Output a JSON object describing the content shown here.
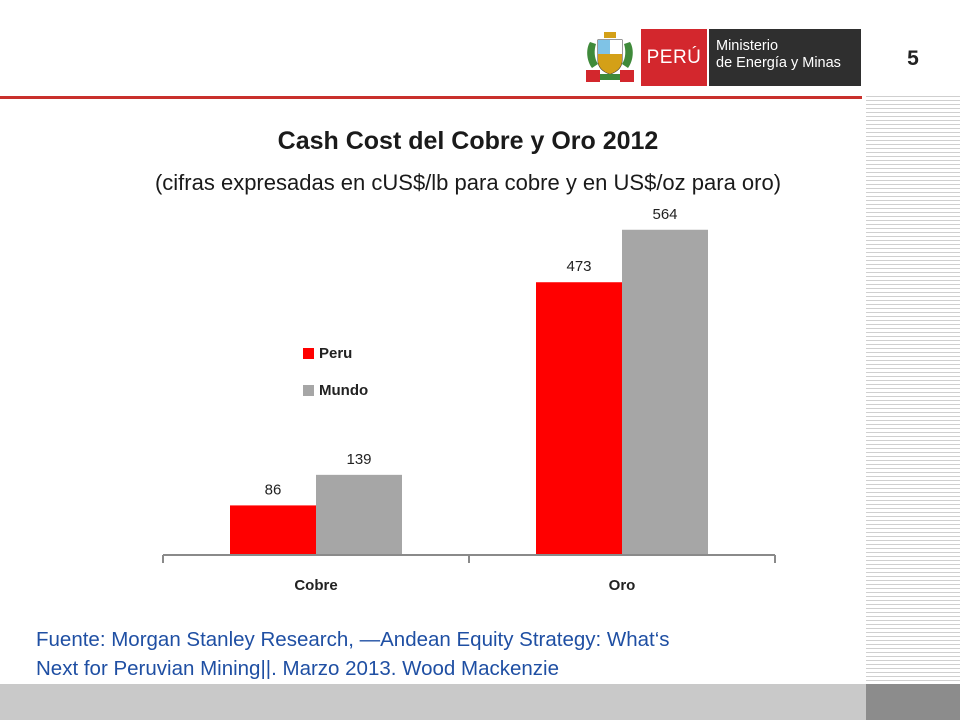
{
  "slide": {
    "page_number": "5",
    "header": {
      "peru_label": "PERÚ",
      "ministry_line1": "Ministerio",
      "ministry_line2": "de Energía y Minas"
    },
    "source_line1": "Fuente: Morgan Stanley Research, —Andean Equity Strategy: What‘s",
    "source_line2": "Next for Peruvian Mining||. Marzo 2013. Wood Mackenzie"
  },
  "colors": {
    "peru": "#ff0000",
    "mundo": "#a6a6a6",
    "accent": "#c9302c",
    "source_text": "#1f4fa3"
  },
  "chart_data": {
    "type": "bar",
    "title": "Cash Cost del Cobre y Oro 2012",
    "subtitle": "(cifras expresadas en cUS$/lb para cobre y en US$/oz para oro)",
    "categories": [
      "Cobre",
      "Oro"
    ],
    "series": [
      {
        "name": "Peru",
        "values": [
          86,
          473
        ],
        "color": "#ff0000"
      },
      {
        "name": "Mundo",
        "values": [
          139,
          564
        ],
        "color": "#a6a6a6"
      }
    ],
    "ylim": [
      0,
      600
    ],
    "grid": false,
    "legend": "inside-left",
    "data_labels": true
  }
}
